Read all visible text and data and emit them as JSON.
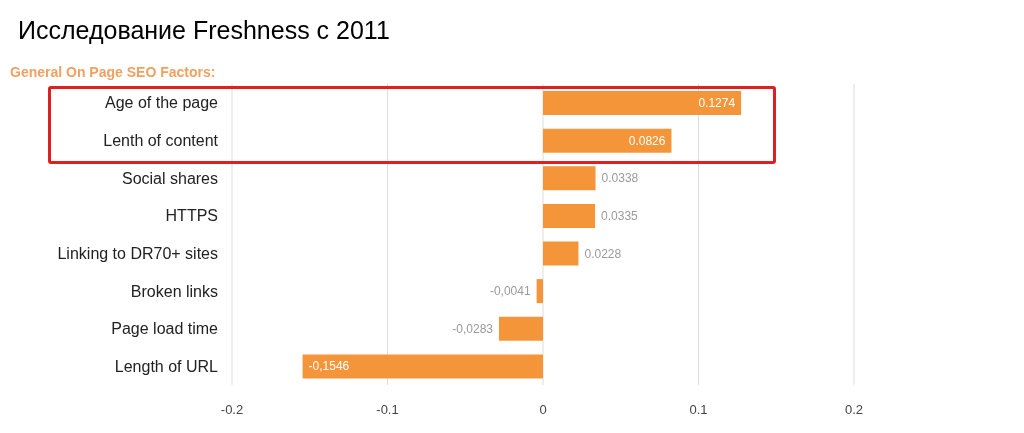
{
  "chart_data": {
    "type": "bar",
    "orientation": "horizontal",
    "title": "Исследование Freshness с 2011",
    "subtitle": "General On Page SEO Factors:",
    "categories": [
      "Age of the page",
      "Lenth of content",
      "Social shares",
      "HTTPS",
      "Linking to DR70+ sites",
      "Broken links",
      "Page load time",
      "Length of URL"
    ],
    "values": [
      0.1274,
      0.0826,
      0.0338,
      0.0335,
      0.0228,
      -0.0041,
      -0.0283,
      -0.1546
    ],
    "value_labels": [
      "0.1274",
      "0.0826",
      "0.0338",
      "0.0335",
      "0.0228",
      "-0,0041",
      "-0,0283",
      "-0,1546"
    ],
    "color": "#f5953a",
    "xlim": [
      -0.2,
      0.2
    ],
    "xticks": [
      -0.2,
      -0.1,
      0,
      0.1,
      0.2
    ],
    "grid": "x",
    "legend": false
  }
}
